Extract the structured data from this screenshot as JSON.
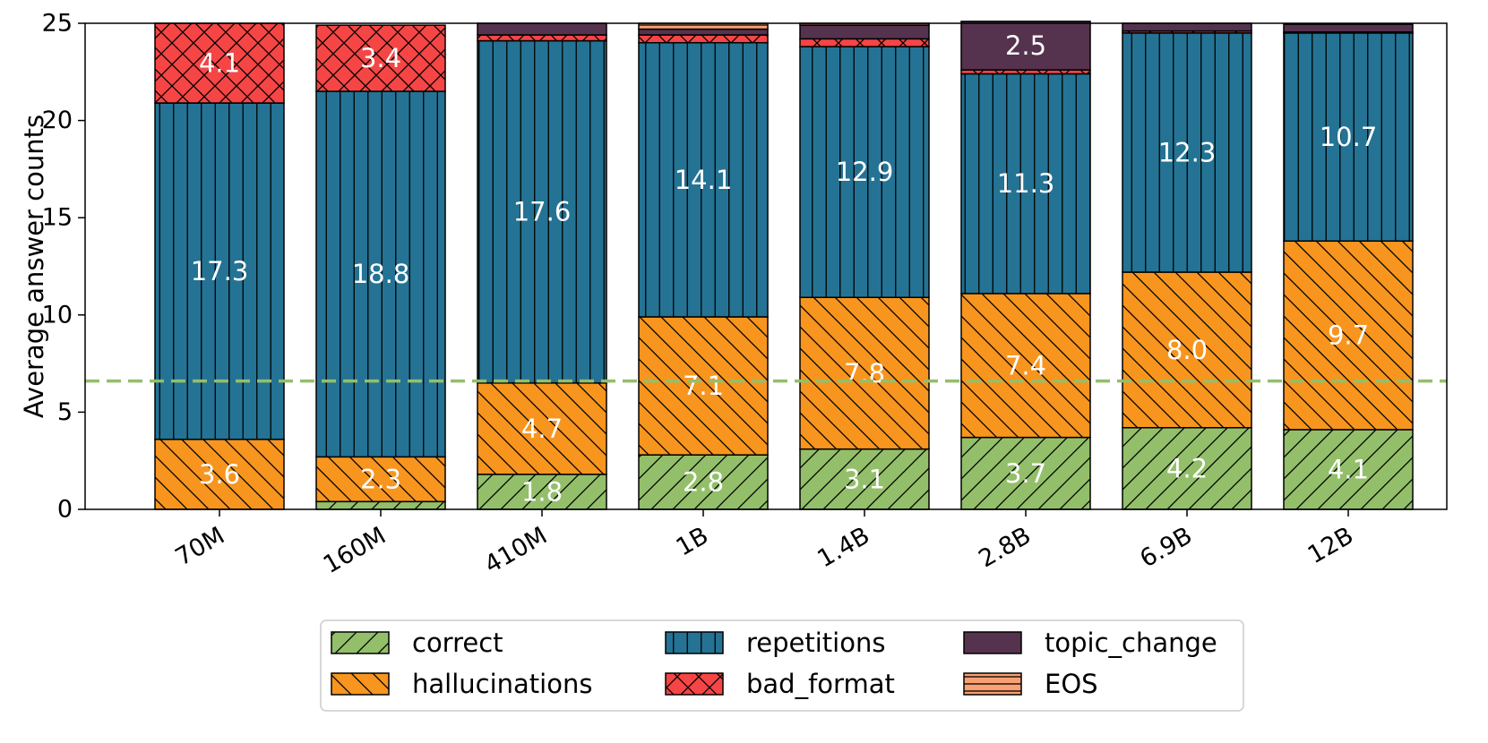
{
  "chart_data": {
    "type": "bar",
    "stacked": true,
    "title": "",
    "xlabel": "",
    "ylabel": "Average answer counts",
    "ylim": [
      0,
      25
    ],
    "yticks": [
      0,
      5,
      10,
      15,
      20,
      25
    ],
    "categories": [
      "70M",
      "160M",
      "410M",
      "1B",
      "1.4B",
      "2.8B",
      "6.9B",
      "12B"
    ],
    "series": [
      {
        "name": "correct",
        "color": "#93bf6a",
        "hatch": "diag-forward",
        "values": [
          0.0,
          0.4,
          1.8,
          2.8,
          3.1,
          3.7,
          4.2,
          4.1
        ],
        "labels": [
          "",
          "",
          "1.8",
          "2.8",
          "3.1",
          "3.7",
          "4.2",
          "4.1"
        ]
      },
      {
        "name": "hallucinations",
        "color": "#f7951e",
        "hatch": "diag-back",
        "values": [
          3.6,
          2.3,
          4.7,
          7.1,
          7.8,
          7.4,
          8.0,
          9.7
        ],
        "labels": [
          "3.6",
          "2.3",
          "4.7",
          "7.1",
          "7.8",
          "7.4",
          "8.0",
          "9.7"
        ]
      },
      {
        "name": "repetitions",
        "color": "#247394",
        "hatch": "vertical",
        "values": [
          17.3,
          18.8,
          17.6,
          14.1,
          12.9,
          11.3,
          12.3,
          10.7
        ],
        "labels": [
          "17.3",
          "18.8",
          "17.6",
          "14.1",
          "12.9",
          "11.3",
          "12.3",
          "10.7"
        ]
      },
      {
        "name": "bad_format",
        "color": "#f64545",
        "hatch": "cross",
        "values": [
          4.1,
          3.4,
          0.3,
          0.4,
          0.4,
          0.2,
          0.1,
          0.05
        ],
        "labels": [
          "4.1",
          "3.4",
          "",
          "",
          "",
          "",
          "",
          ""
        ]
      },
      {
        "name": "topic_change",
        "color": "#55324d",
        "hatch": "none",
        "values": [
          0.0,
          0.0,
          0.6,
          0.3,
          0.7,
          2.5,
          0.4,
          0.4
        ],
        "labels": [
          "",
          "",
          "",
          "",
          "",
          "2.5",
          "",
          ""
        ]
      },
      {
        "name": "EOS",
        "color": "#f9a074",
        "hatch": "horizontal",
        "values": [
          0.0,
          0.0,
          0.0,
          0.3,
          0.1,
          0.0,
          0.0,
          0.0
        ],
        "labels": [
          "",
          "",
          "",
          "",
          "",
          "",
          "",
          ""
        ]
      }
    ],
    "reference_line": {
      "y": 6.6,
      "color": "#93bf6a",
      "style": "dashed"
    },
    "legend": {
      "placement": "bottom-center",
      "columns": 3
    }
  }
}
